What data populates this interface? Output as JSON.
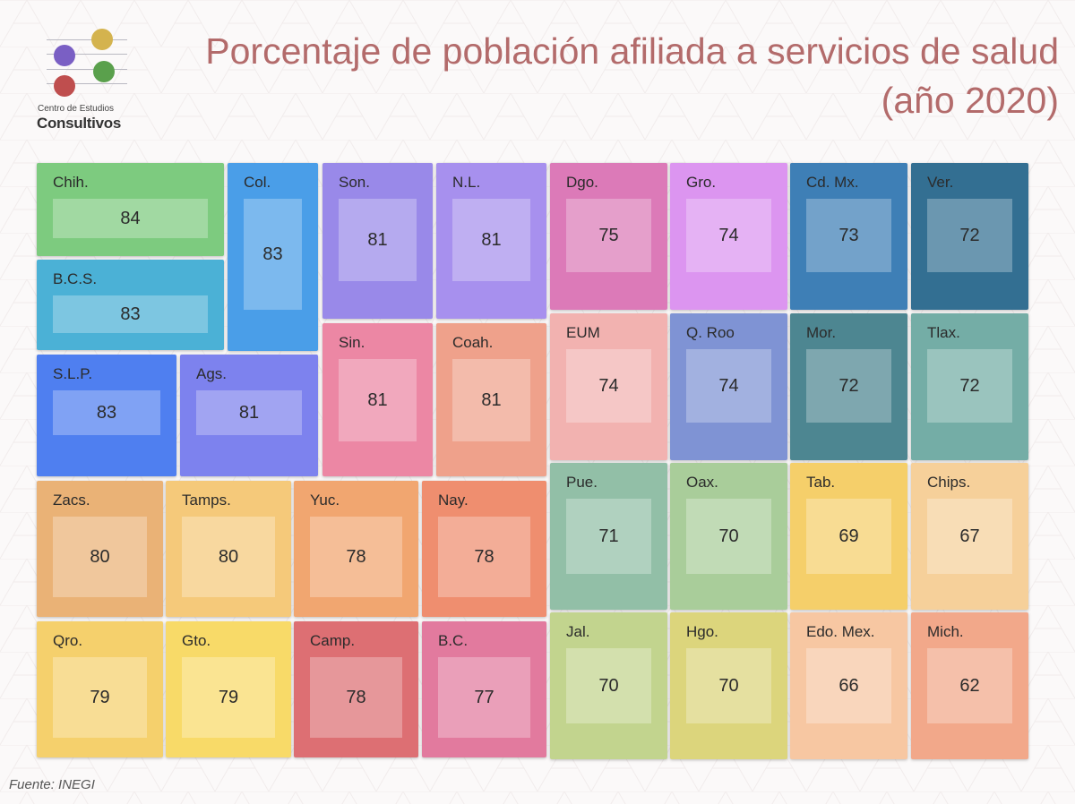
{
  "title": {
    "line1": "Porcentaje de población afiliada a servicios de salud",
    "line2": "(año 2020)"
  },
  "logo": {
    "line1": "Centro de Estudios",
    "line2": "Consultivos",
    "dot_colors": [
      "#7a5fc4",
      "#d4b34e",
      "#5aa04c",
      "#bf4e4e"
    ]
  },
  "source": "Fuente: INEGI",
  "chart_data": {
    "type": "treemap",
    "title": "Porcentaje de población afiliada a servicios de salud (año 2020)",
    "unit": "%",
    "items": [
      {
        "label": "Chih.",
        "value": 84,
        "color": "#7dcb7f"
      },
      {
        "label": "Col.",
        "value": 83,
        "color": "#4a9ee8"
      },
      {
        "label": "B.C.S.",
        "value": 83,
        "color": "#4bb1d6"
      },
      {
        "label": "S.L.P.",
        "value": 83,
        "color": "#4f7ff0"
      },
      {
        "label": "Ags.",
        "value": 81,
        "color": "#7d82ee"
      },
      {
        "label": "Son.",
        "value": 81,
        "color": "#9989e9"
      },
      {
        "label": "N.L.",
        "value": 81,
        "color": "#a790ee"
      },
      {
        "label": "Sin.",
        "value": 81,
        "color": "#ec87a4"
      },
      {
        "label": "Coah.",
        "value": 81,
        "color": "#efa18b"
      },
      {
        "label": "Zacs.",
        "value": 80,
        "color": "#eab276"
      },
      {
        "label": "Tamps.",
        "value": 80,
        "color": "#f5c97a"
      },
      {
        "label": "Yuc.",
        "value": 78,
        "color": "#f1a670"
      },
      {
        "label": "Nay.",
        "value": 78,
        "color": "#ef8e6f"
      },
      {
        "label": "Qro.",
        "value": 79,
        "color": "#f5d06c"
      },
      {
        "label": "Gto.",
        "value": 79,
        "color": "#f8da68"
      },
      {
        "label": "Camp.",
        "value": 78,
        "color": "#dd6f73"
      },
      {
        "label": "B.C.",
        "value": 77,
        "color": "#e27a9e"
      },
      {
        "label": "Dgo.",
        "value": 75,
        "color": "#dc7ab8"
      },
      {
        "label": "Gro.",
        "value": 74,
        "color": "#dc95f0"
      },
      {
        "label": "Cd. Mx.",
        "value": 73,
        "color": "#3e7fb6"
      },
      {
        "label": "Ver.",
        "value": 72,
        "color": "#336f92"
      },
      {
        "label": "EUM",
        "value": 74,
        "color": "#f2b2b0"
      },
      {
        "label": "Q. Roo",
        "value": 74,
        "color": "#7f93d4"
      },
      {
        "label": "Mor.",
        "value": 72,
        "color": "#4d8691"
      },
      {
        "label": "Tlax.",
        "value": 72,
        "color": "#74ada6"
      },
      {
        "label": "Pue.",
        "value": 71,
        "color": "#92bfa7"
      },
      {
        "label": "Oax.",
        "value": 70,
        "color": "#a9cd9a"
      },
      {
        "label": "Tab.",
        "value": 69,
        "color": "#f5cf6a"
      },
      {
        "label": "Chips.",
        "value": 67,
        "color": "#f6d09a"
      },
      {
        "label": "Jal.",
        "value": 70,
        "color": "#c2d48e"
      },
      {
        "label": "Hgo.",
        "value": 70,
        "color": "#dcd57c"
      },
      {
        "label": "Edo. Mex.",
        "value": 66,
        "color": "#f7c7a2"
      },
      {
        "label": "Mich.",
        "value": 62,
        "color": "#f2a88a"
      }
    ]
  }
}
